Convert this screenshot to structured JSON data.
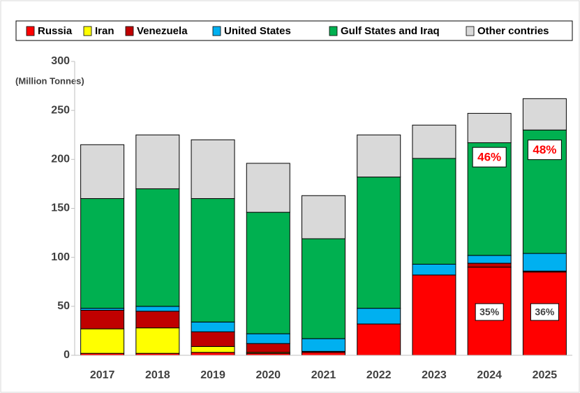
{
  "chart_data": {
    "type": "stacked_bar",
    "y_label": "(Million Tonnes)",
    "categories": [
      "2017",
      "2018",
      "2019",
      "2020",
      "2021",
      "2022",
      "2023",
      "2024",
      "2025"
    ],
    "series": [
      {
        "name": "Russia",
        "color": "#ff0000",
        "values": [
          2,
          2,
          3,
          2,
          3,
          32,
          82,
          90,
          85
        ]
      },
      {
        "name": "Iran",
        "color": "#ffff00",
        "values": [
          25,
          26,
          6,
          1,
          0,
          0,
          0,
          0,
          0
        ]
      },
      {
        "name": "Venezuela",
        "color": "#c00000",
        "values": [
          19,
          17,
          15,
          9,
          1,
          0,
          0,
          4,
          1
        ]
      },
      {
        "name": "United States",
        "color": "#00b0f0",
        "values": [
          2,
          5,
          10,
          10,
          13,
          16,
          11,
          8,
          18
        ]
      },
      {
        "name": "Gulf States and Iraq",
        "color": "#00b050",
        "values": [
          112,
          120,
          126,
          124,
          102,
          134,
          108,
          115,
          126
        ]
      },
      {
        "name": "Other contries",
        "color": "#d9d9d9",
        "values": [
          55,
          55,
          60,
          50,
          44,
          43,
          34,
          30,
          32
        ]
      }
    ],
    "annotations": [
      "46%",
      "48%",
      "35%",
      "36%"
    ],
    "ylim": [
      0,
      300
    ],
    "yticks": [
      0,
      50,
      100,
      150,
      200,
      250,
      300
    ]
  }
}
